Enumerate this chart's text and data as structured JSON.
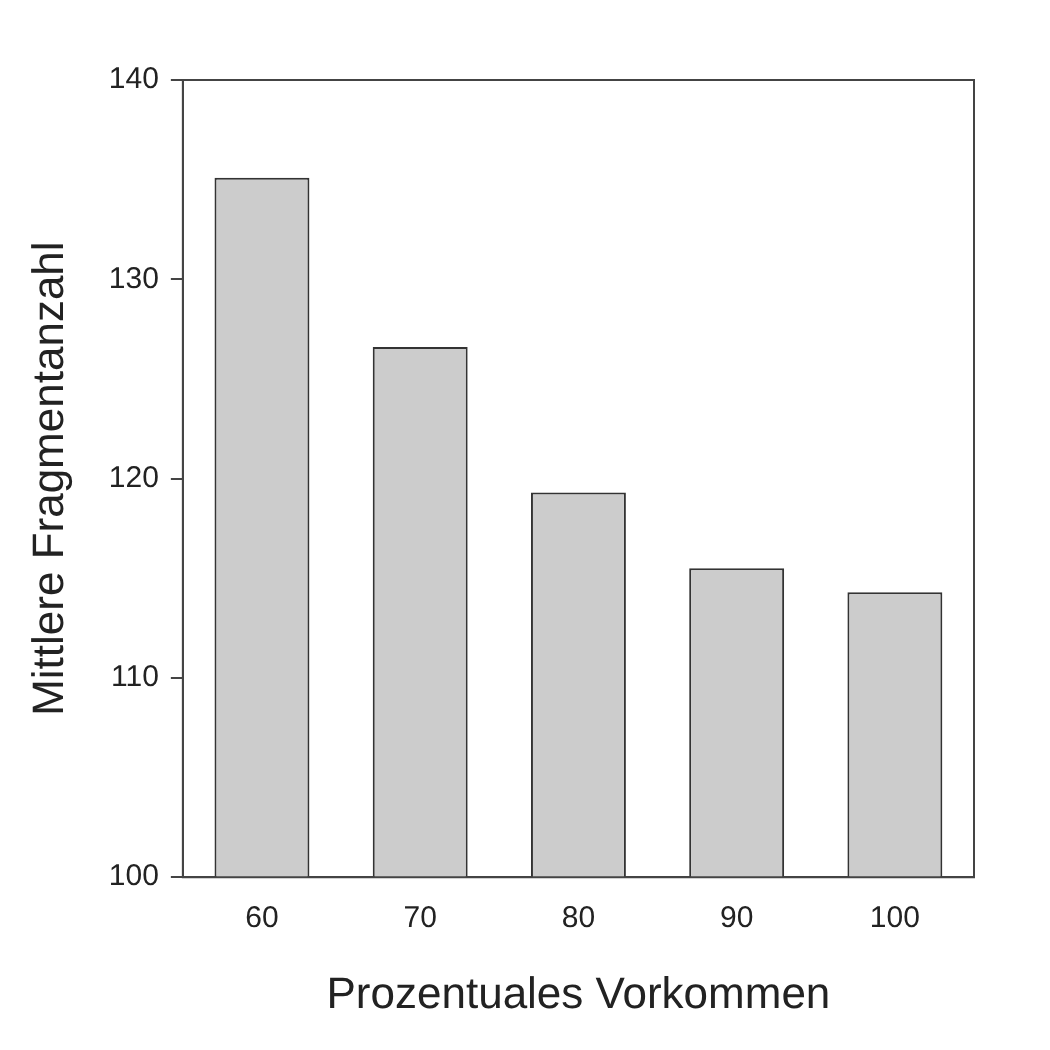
{
  "chart_data": {
    "type": "bar",
    "xlabel": "Prozentuales Vorkommen",
    "ylabel": "Mittlere Fragmentanzahl",
    "categories": [
      "60",
      "70",
      "80",
      "90",
      "100"
    ],
    "values": [
      135.1,
      126.6,
      119.3,
      115.5,
      114.3
    ],
    "color": "#cccccc",
    "ylim": [
      100,
      140
    ],
    "yticks": [
      100,
      110,
      120,
      130,
      140
    ],
    "grid": false,
    "legend": false
  }
}
